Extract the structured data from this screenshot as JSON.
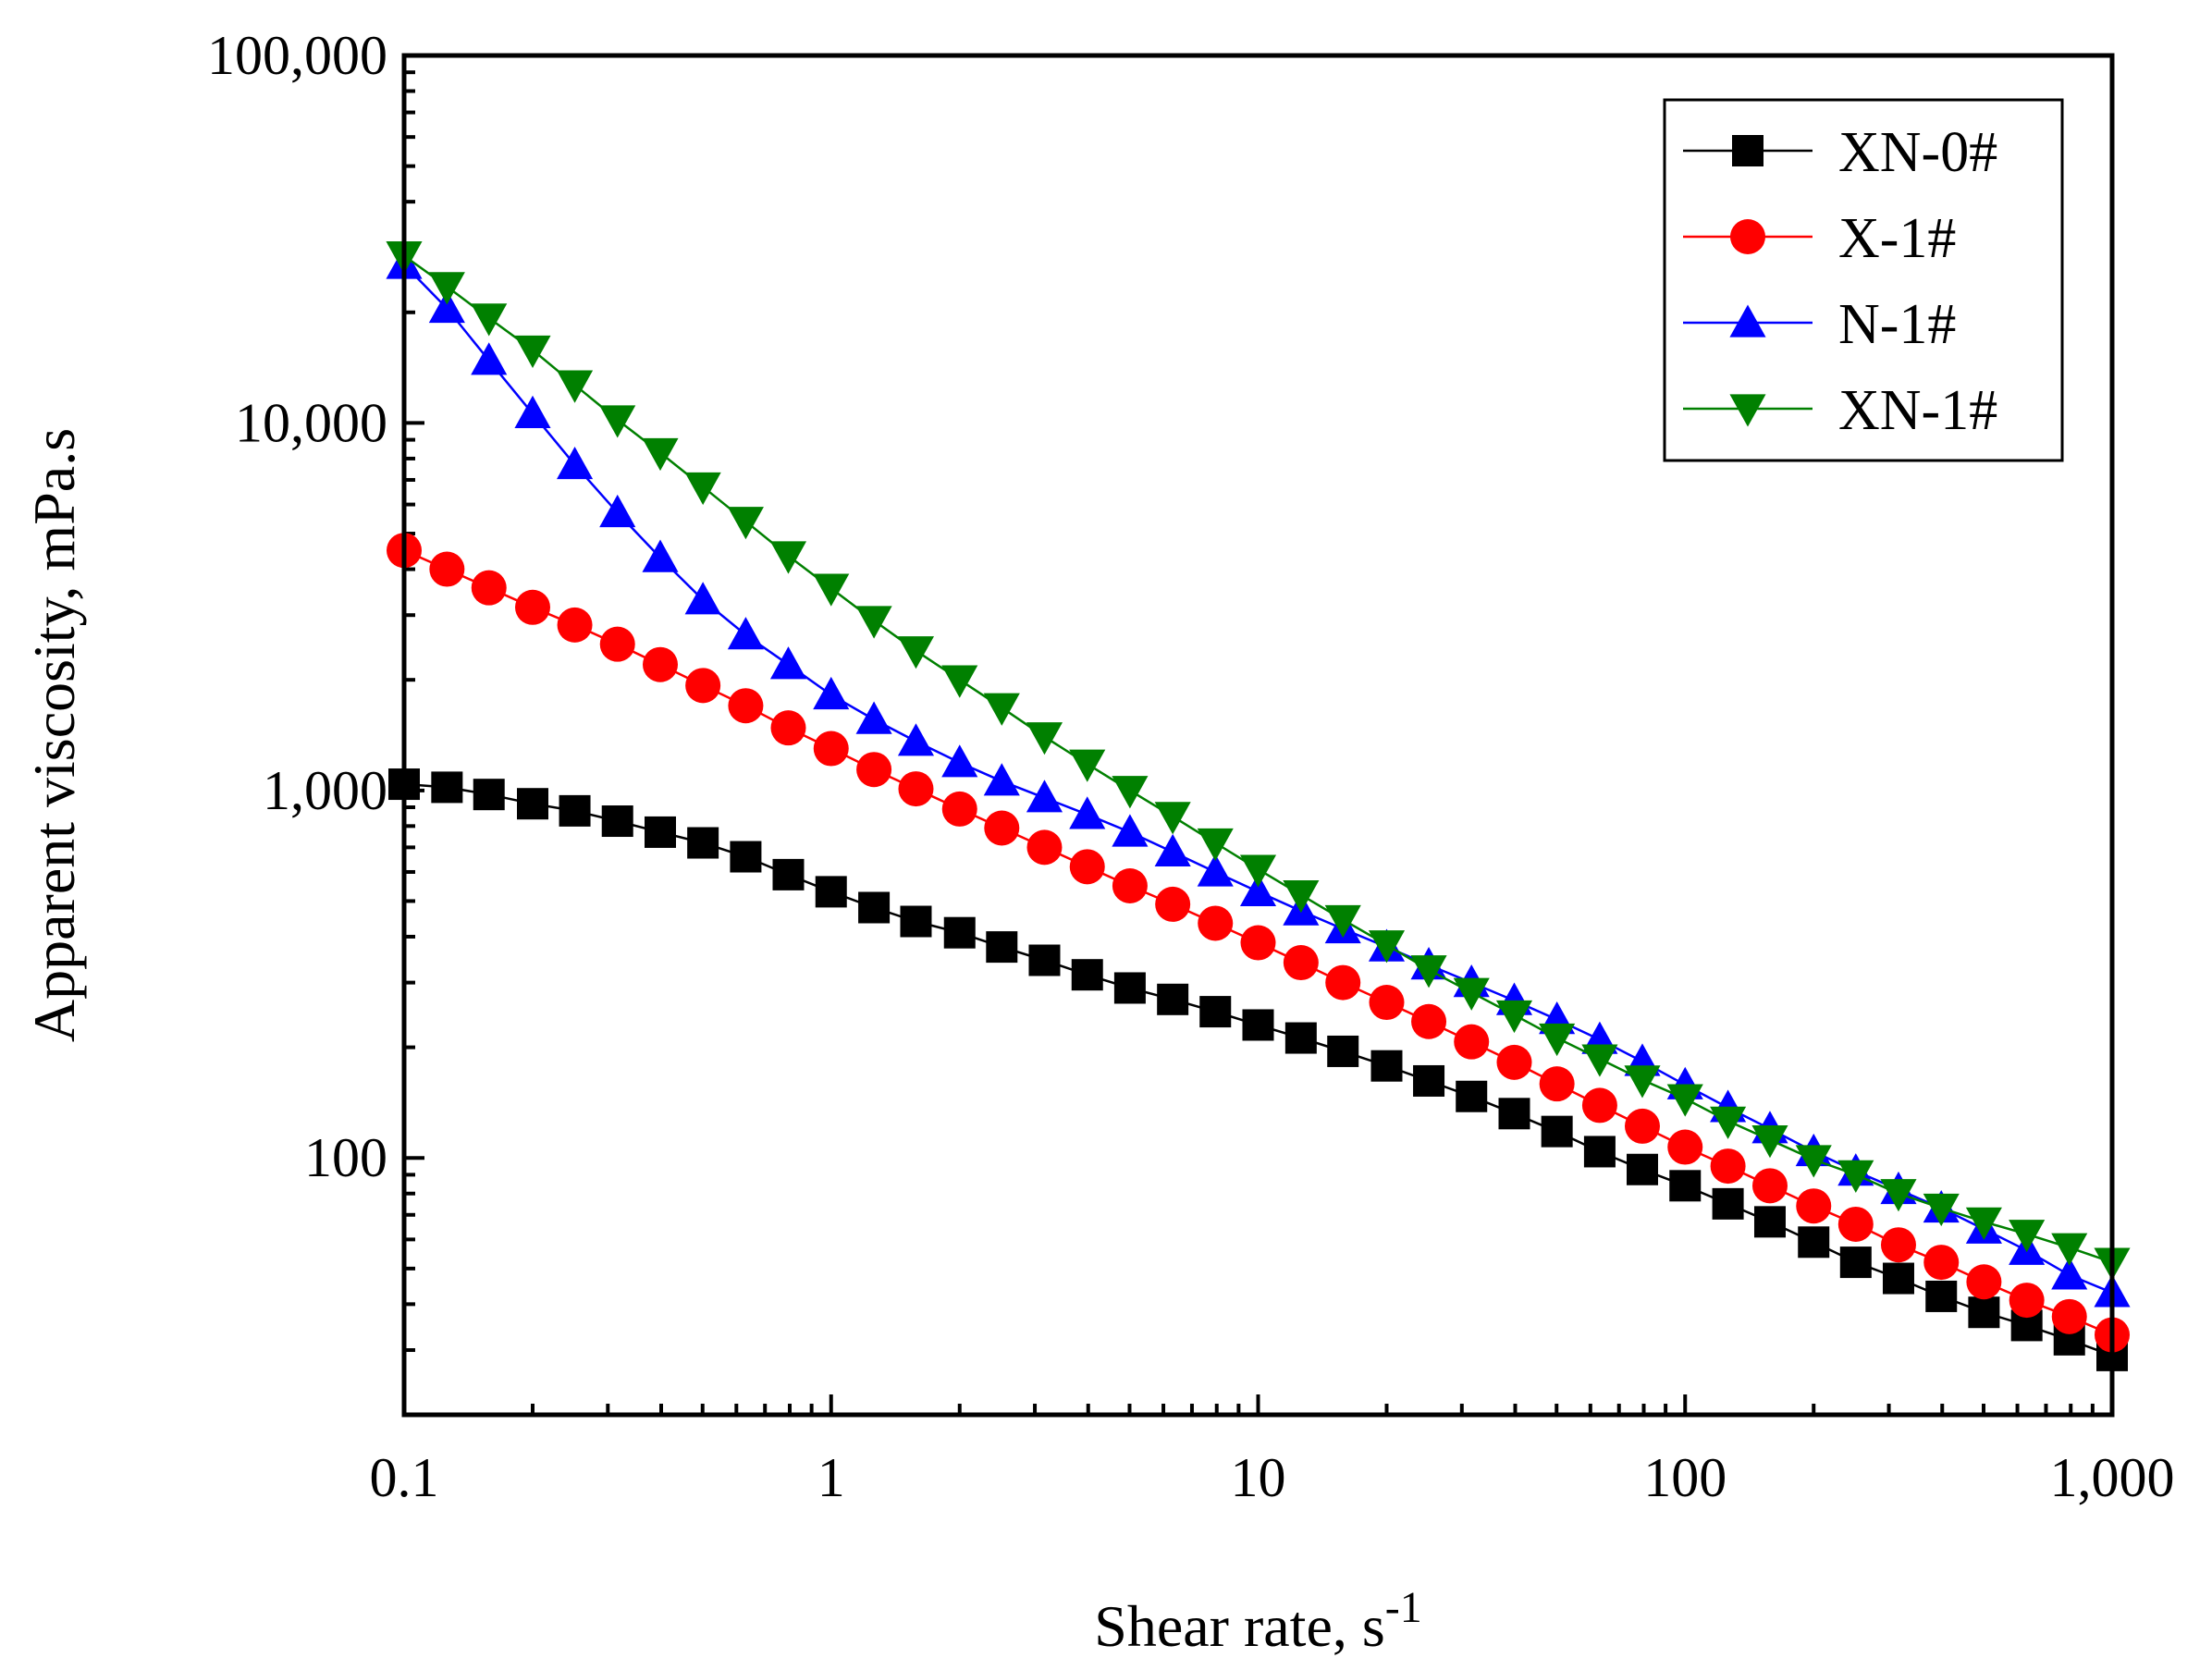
{
  "chart_data": {
    "type": "line",
    "xlabel": "Shear rate, s",
    "xlabel_superscript": "-1",
    "ylabel": "Apparent viscosity, mPa.s",
    "xscale": "log",
    "yscale": "log",
    "xlim": [
      0.1,
      1000
    ],
    "ylim": [
      20,
      100000
    ],
    "x_ticks": [
      {
        "value": 0.1,
        "label": "0.1"
      },
      {
        "value": 1,
        "label": "1"
      },
      {
        "value": 10,
        "label": "10"
      },
      {
        "value": 100,
        "label": "100"
      },
      {
        "value": 1000,
        "label": "1,000"
      }
    ],
    "y_ticks": [
      {
        "value": 100,
        "label": "100"
      },
      {
        "value": 1000,
        "label": "1,000"
      },
      {
        "value": 10000,
        "label": "10,000"
      },
      {
        "value": 100000,
        "label": "100,000"
      }
    ],
    "grid": false,
    "legend_position": "top-right",
    "x": [
      0.1,
      0.126,
      0.158,
      0.2,
      0.251,
      0.316,
      0.398,
      0.501,
      0.631,
      0.794,
      1,
      1.26,
      1.58,
      2,
      2.51,
      3.16,
      3.98,
      5.01,
      6.31,
      7.94,
      10,
      12.6,
      15.8,
      20,
      25.1,
      31.6,
      39.8,
      50.1,
      63.1,
      79.4,
      100,
      126,
      158,
      200,
      251,
      316,
      398,
      501,
      631,
      794,
      1000
    ],
    "series": [
      {
        "name": "XN-0#",
        "color": "#000000",
        "marker": "square",
        "values": [
          1040,
          1020,
          975,
          920,
          880,
          825,
          770,
          720,
          660,
          590,
          530,
          480,
          440,
          410,
          375,
          345,
          315,
          290,
          270,
          250,
          230,
          212,
          195,
          178,
          162,
          147,
          132,
          118,
          104,
          93,
          84,
          75,
          67,
          59,
          52,
          47,
          42,
          38,
          35,
          32,
          29
        ]
      },
      {
        "name": "X-1#",
        "color": "#ff0000",
        "marker": "circle",
        "values": [
          4500,
          4000,
          3560,
          3150,
          2820,
          2500,
          2200,
          1930,
          1700,
          1480,
          1300,
          1140,
          1010,
          890,
          790,
          700,
          620,
          550,
          490,
          435,
          385,
          340,
          300,
          265,
          235,
          207,
          182,
          159,
          139,
          122,
          107,
          95,
          84,
          74,
          66,
          58,
          52,
          46,
          41,
          37,
          33
        ]
      },
      {
        "name": "N-1#",
        "color": "#0000ff",
        "marker": "triangle-up",
        "values": [
          27000,
          20500,
          14800,
          10600,
          7700,
          5700,
          4300,
          3300,
          2650,
          2200,
          1820,
          1560,
          1360,
          1190,
          1060,
          955,
          860,
          770,
          680,
          600,
          530,
          470,
          420,
          375,
          335,
          300,
          268,
          238,
          210,
          183,
          158,
          137,
          120,
          104,
          92,
          82,
          73,
          64,
          56,
          48,
          43
        ]
      },
      {
        "name": "XN-1#",
        "color": "#008000",
        "marker": "triangle-down",
        "values": [
          28500,
          23500,
          19300,
          15800,
          12700,
          10200,
          8300,
          6700,
          5400,
          4350,
          3550,
          2900,
          2400,
          2000,
          1680,
          1400,
          1180,
          1000,
          850,
          720,
          610,
          520,
          445,
          380,
          325,
          282,
          245,
          212,
          186,
          163,
          145,
          126,
          112,
          99,
          90,
          80,
          73,
          67,
          62,
          57,
          52
        ]
      }
    ]
  }
}
